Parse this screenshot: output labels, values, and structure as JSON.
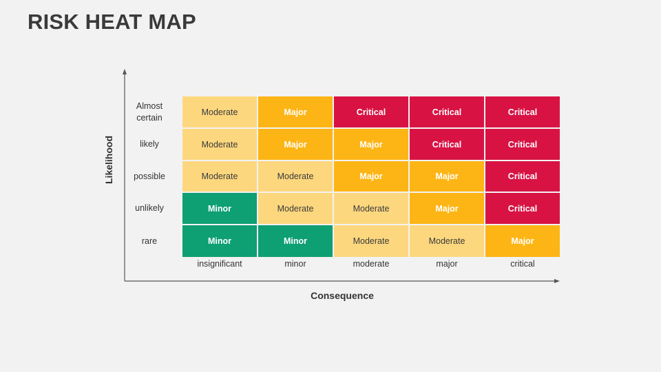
{
  "title": "RISK HEAT MAP",
  "y_axis_title": "Likelihood",
  "x_axis_title": "Consequence",
  "likelihood_labels": [
    "Almost certain",
    "likely",
    "possible",
    "unlikely",
    "rare"
  ],
  "consequence_labels": [
    "insignificant",
    "minor",
    "moderate",
    "major",
    "critical"
  ],
  "rating_colors": {
    "Minor": "#0e9f73",
    "Moderate": "#fdd77e",
    "Major": "#fdb515",
    "Critical": "#d81344"
  },
  "matrix": [
    [
      "Moderate",
      "Major",
      "Critical",
      "Critical",
      "Critical"
    ],
    [
      "Moderate",
      "Major",
      "Major",
      "Critical",
      "Critical"
    ],
    [
      "Moderate",
      "Moderate",
      "Major",
      "Major",
      "Critical"
    ],
    [
      "Minor",
      "Moderate",
      "Moderate",
      "Major",
      "Critical"
    ],
    [
      "Minor",
      "Minor",
      "Moderate",
      "Moderate",
      "Major"
    ]
  ]
}
